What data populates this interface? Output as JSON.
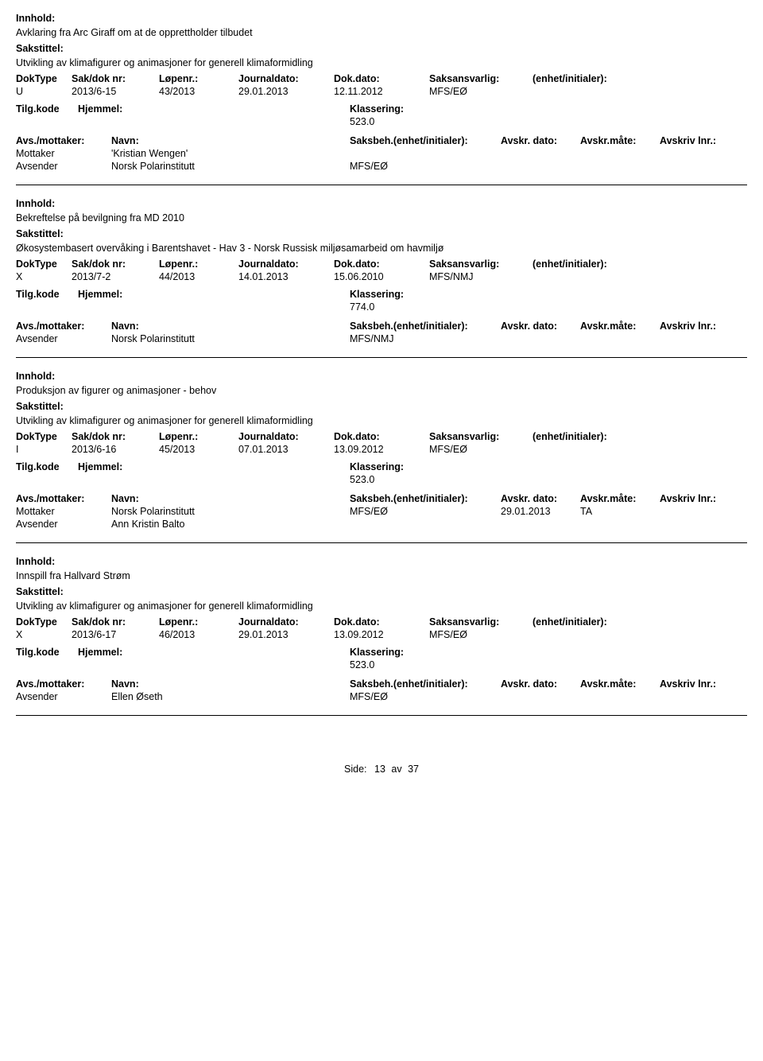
{
  "labels": {
    "innhold": "Innhold:",
    "sakstittel": "Sakstittel:",
    "doktype": "DokType",
    "sakdok": "Sak/dok nr:",
    "lopenr": "Løpenr.:",
    "journal": "Journaldato:",
    "dokdato": "Dok.dato:",
    "saksans": "Saksansvarlig:",
    "enhet": "(enhet/initialer):",
    "tilgkode": "Tilg.kode",
    "hjemmel": "Hjemmel:",
    "klassering": "Klassering:",
    "avsmot": "Avs./mottaker:",
    "navn": "Navn:",
    "saksbeh": "Saksbeh.(enhet/initialer):",
    "avskrdato": "Avskr. dato:",
    "avskrmate": "Avskr.måte:",
    "avskriv": "Avskriv lnr.:",
    "mottaker": "Mottaker",
    "avsender": "Avsender"
  },
  "records": [
    {
      "innhold": "Avklaring fra Arc Giraff om at de opprettholder tilbudet",
      "sakstittel": "Utvikling av klimafigurer og animasjoner for generell klimaformidling",
      "doktype": "U",
      "sakdok": "2013/6-15",
      "lopenr": "43/2013",
      "journal": "29.01.2013",
      "dokdato": "12.11.2012",
      "saksans": "MFS/EØ",
      "klassering": "523.0",
      "parties": [
        {
          "role": "Mottaker",
          "navn": "'Kristian Wengen'",
          "saksbeh": "",
          "avskrd": "",
          "avskrm": ""
        },
        {
          "role": "Avsender",
          "navn": "Norsk Polarinstitutt",
          "saksbeh": "MFS/EØ",
          "avskrd": "",
          "avskrm": ""
        }
      ]
    },
    {
      "innhold": "Bekreftelse på bevilgning fra MD 2010",
      "sakstittel": "Økosystembasert overvåking i Barentshavet - Hav 3 - Norsk Russisk miljøsamarbeid om havmiljø",
      "doktype": "X",
      "sakdok": "2013/7-2",
      "lopenr": "44/2013",
      "journal": "14.01.2013",
      "dokdato": "15.06.2010",
      "saksans": "MFS/NMJ",
      "klassering": "774.0",
      "parties": [
        {
          "role": "Avsender",
          "navn": "Norsk Polarinstitutt",
          "saksbeh": "MFS/NMJ",
          "avskrd": "",
          "avskrm": ""
        }
      ]
    },
    {
      "innhold": "Produksjon av figurer og animasjoner - behov",
      "sakstittel": "Utvikling av klimafigurer og animasjoner for generell klimaformidling",
      "doktype": "I",
      "sakdok": "2013/6-16",
      "lopenr": "45/2013",
      "journal": "07.01.2013",
      "dokdato": "13.09.2012",
      "saksans": "MFS/EØ",
      "klassering": "523.0",
      "parties": [
        {
          "role": "Mottaker",
          "navn": "Norsk Polarinstitutt",
          "saksbeh": "MFS/EØ",
          "avskrd": "29.01.2013",
          "avskrm": "TA"
        },
        {
          "role": "Avsender",
          "navn": "Ann Kristin Balto",
          "saksbeh": "",
          "avskrd": "",
          "avskrm": ""
        }
      ]
    },
    {
      "innhold": "Innspill fra Hallvard Strøm",
      "sakstittel": "Utvikling av klimafigurer og animasjoner for generell klimaformidling",
      "doktype": "X",
      "sakdok": "2013/6-17",
      "lopenr": "46/2013",
      "journal": "29.01.2013",
      "dokdato": "13.09.2012",
      "saksans": "MFS/EØ",
      "klassering": "523.0",
      "parties": [
        {
          "role": "Avsender",
          "navn": "Ellen Øseth",
          "saksbeh": "MFS/EØ",
          "avskrd": "",
          "avskrm": ""
        }
      ]
    }
  ],
  "footer": {
    "side": "Side:",
    "page": "13",
    "av": "av",
    "total": "37"
  }
}
